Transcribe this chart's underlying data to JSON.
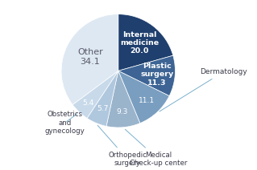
{
  "labels": [
    "Internal medicine",
    "Plastic surgery",
    "Dermatology",
    "Medical Check-up center",
    "Orthopedic surgery",
    "Obstetrics and gynecology",
    "Other"
  ],
  "values": [
    20.0,
    11.3,
    11.1,
    9.3,
    5.7,
    5.4,
    34.1
  ],
  "colors": [
    "#1f3f6e",
    "#3d6494",
    "#7a9ec0",
    "#9ab4cc",
    "#b0c8de",
    "#c8daea",
    "#dde8f2"
  ],
  "startangle": 90,
  "background_color": "#ffffff"
}
